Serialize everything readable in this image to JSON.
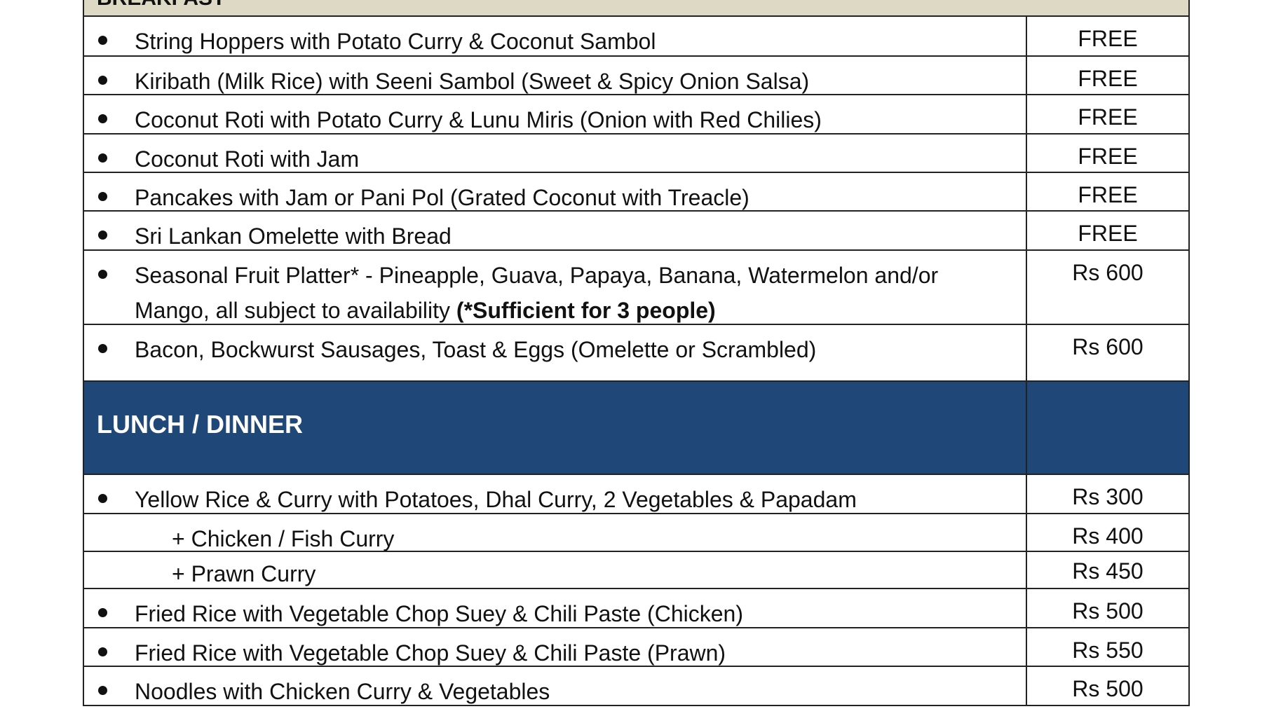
{
  "breakfast": {
    "title": "BREAKFAST",
    "items": [
      {
        "name": "String Hoppers with Potato Curry & Coconut Sambol",
        "price": "FREE"
      },
      {
        "name": "Kiribath (Milk Rice) with Seeni Sambol (Sweet & Spicy Onion Salsa)",
        "price": "FREE"
      },
      {
        "name": "Coconut Roti with Potato Curry & Lunu Miris (Onion with Red Chilies)",
        "price": "FREE"
      },
      {
        "name": "Coconut Roti with Jam",
        "price": "FREE"
      },
      {
        "name": "Pancakes with Jam or Pani Pol (Grated Coconut with Treacle)",
        "price": "FREE"
      },
      {
        "name": "Sri Lankan Omelette with Bread",
        "price": "FREE"
      },
      {
        "name": "Seasonal Fruit Platter* - Pineapple,  Guava, Papaya, Banana, Watermelon and/or Mango, all subject to availability",
        "note": "(*Sufficient for 3 people)",
        "price": "Rs 600"
      },
      {
        "name": "Bacon, Bockwurst Sausages, Toast & Eggs (Omelette or Scrambled)",
        "price": "Rs 600"
      }
    ]
  },
  "lunch": {
    "title": "LUNCH / DINNER",
    "items": [
      {
        "name": "Yellow Rice & Curry with Potatoes, Dhal Curry, 2 Vegetables & Papadam",
        "price": "Rs 300"
      },
      {
        "name": "+ Chicken / Fish Curry",
        "price": "Rs 400"
      },
      {
        "name": "+ Prawn Curry",
        "price": "Rs 450"
      },
      {
        "name": "Fried Rice with Vegetable Chop Suey & Chili Paste (Chicken)",
        "price": "Rs 500"
      },
      {
        "name": "Fried Rice with Vegetable Chop Suey & Chili Paste (Prawn)",
        "price": "Rs 550"
      },
      {
        "name": "Noodles with Chicken Curry & Vegetables",
        "price": "Rs 500"
      }
    ]
  }
}
